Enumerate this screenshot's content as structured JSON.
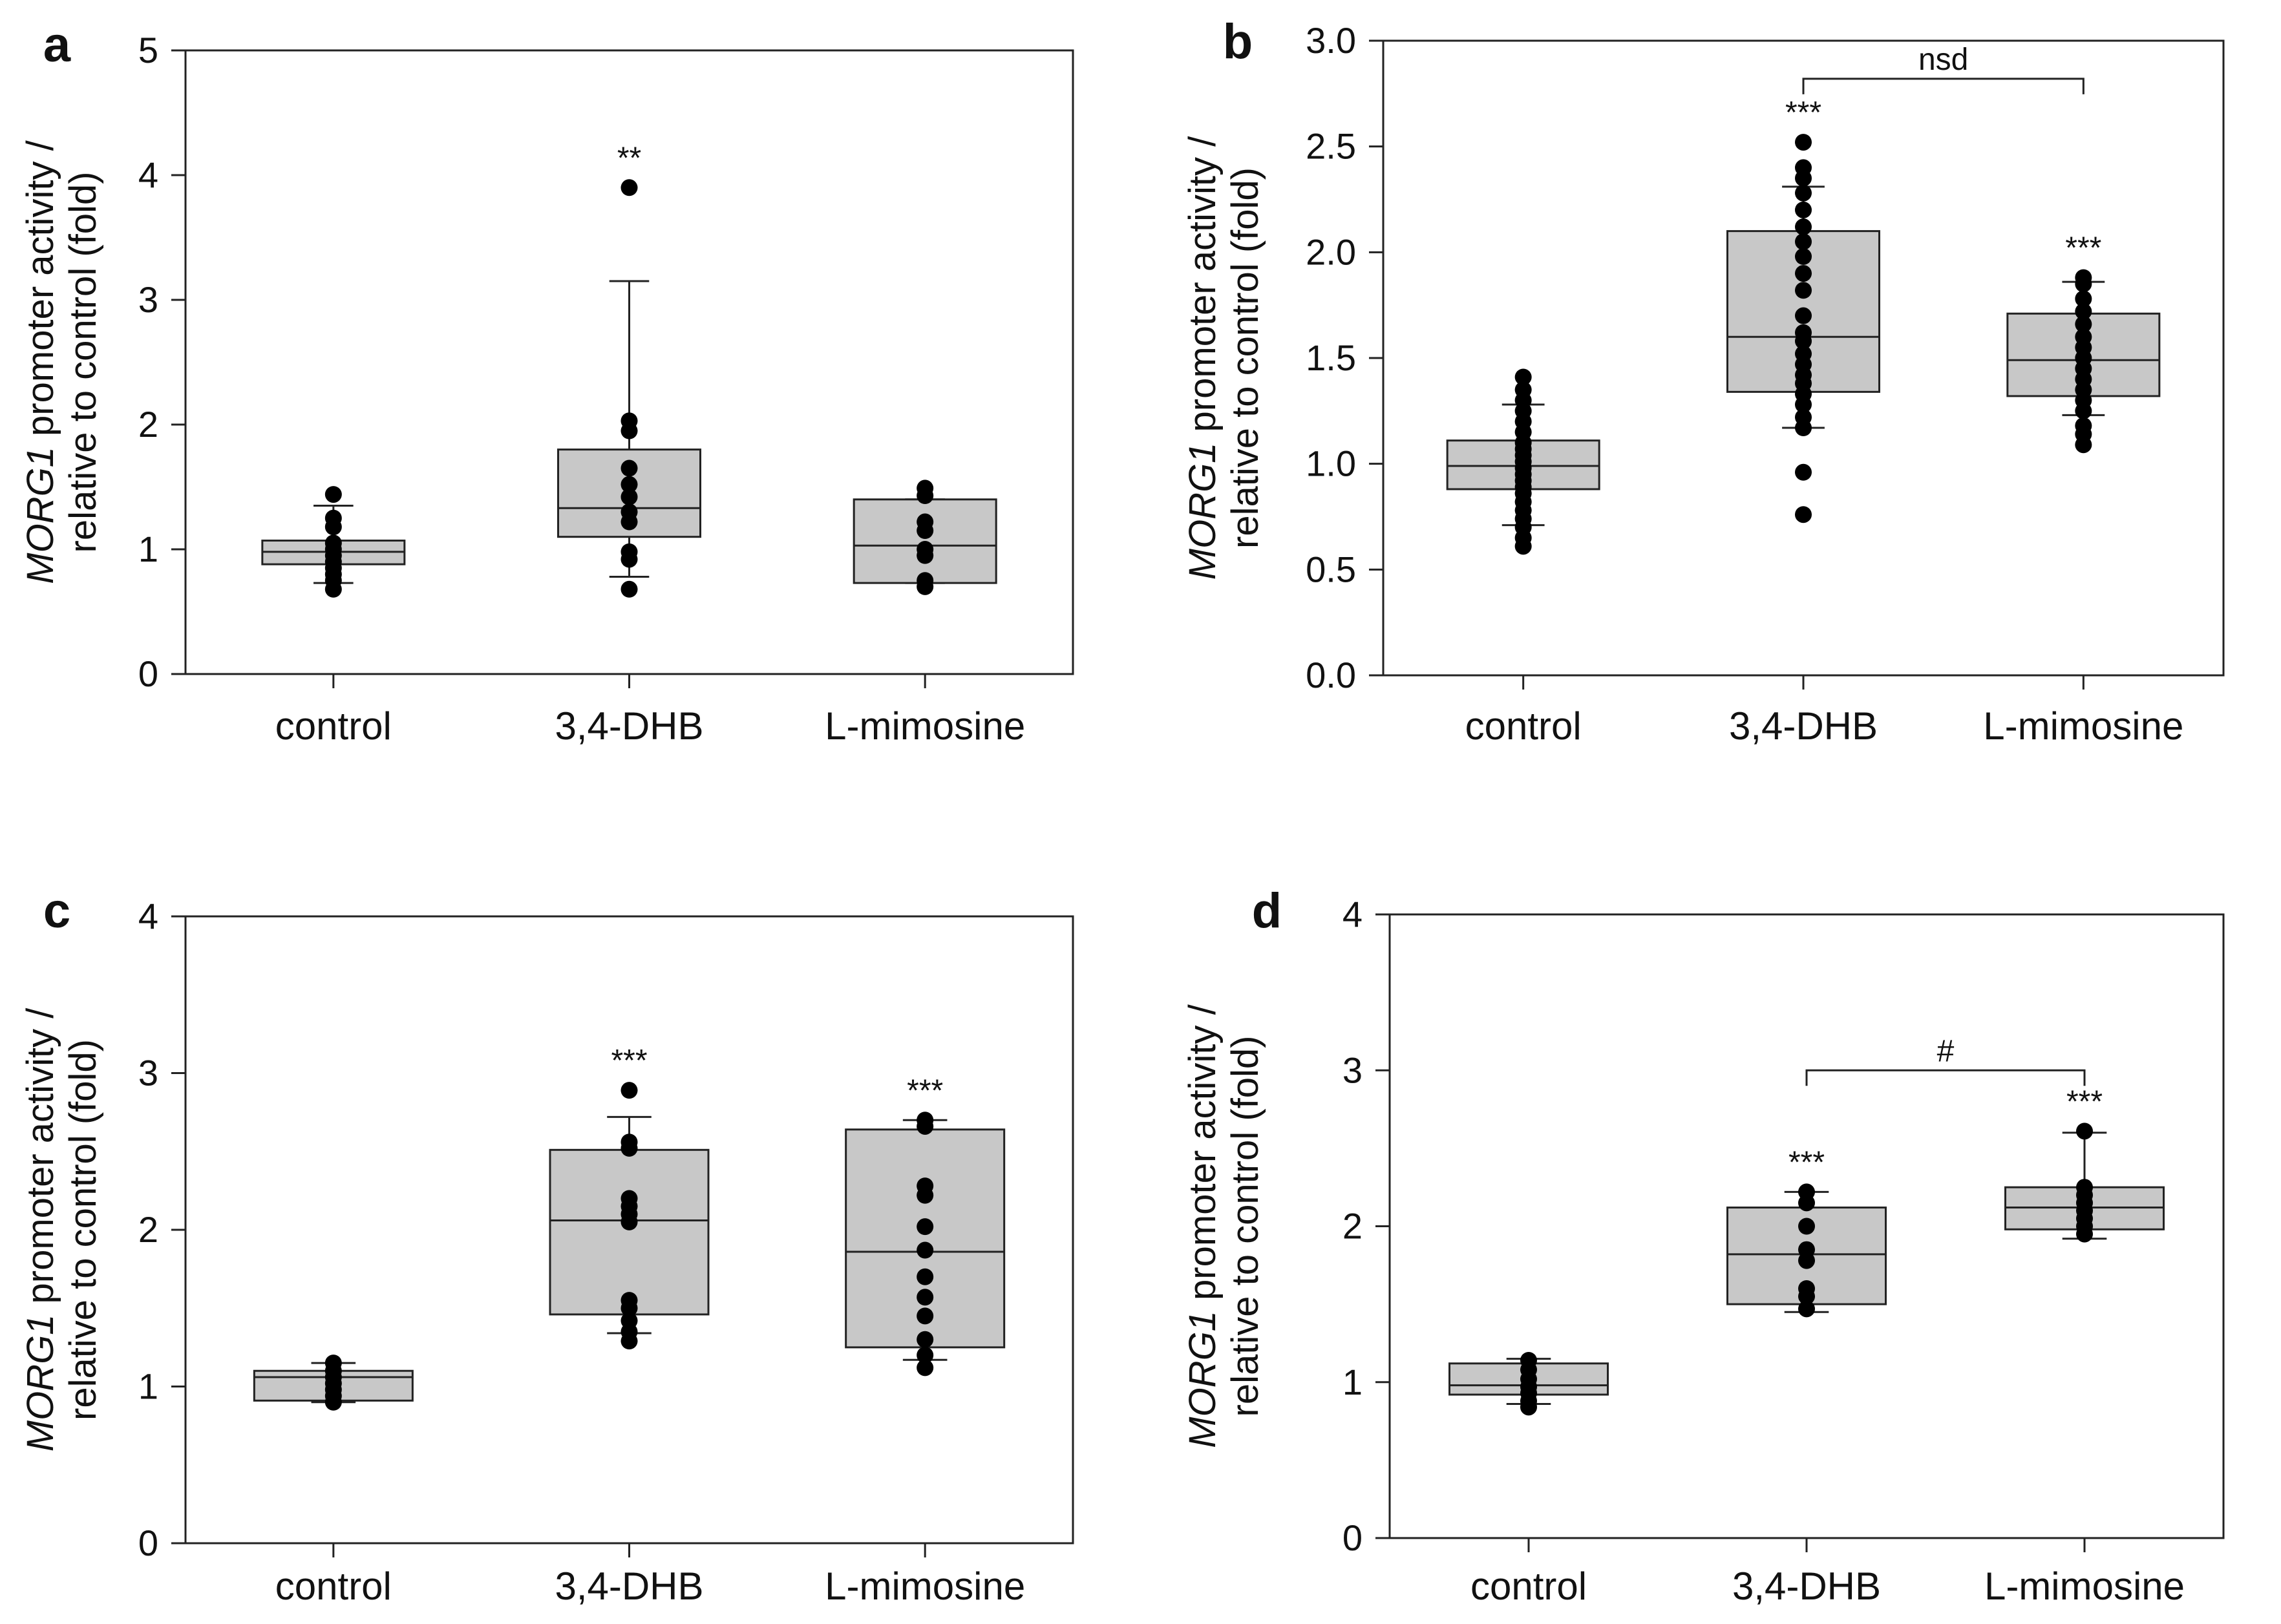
{
  "y_axis_label_italic": "MORG1",
  "y_axis_label_rest": " promoter activity /",
  "y_axis_label_line2": "relative to control (fold)",
  "chart_data": [
    {
      "panel": "a",
      "type": "box",
      "categories": [
        "control",
        "3,4-DHB",
        "L-mimosine"
      ],
      "ylim": [
        0,
        5
      ],
      "yticks": [
        "0",
        "1",
        "2",
        "3",
        "4",
        "5"
      ],
      "ytick_values": [
        0,
        1,
        2,
        3,
        4,
        5
      ],
      "boxes": [
        {
          "q1": 0.88,
          "median": 0.98,
          "q3": 1.07,
          "whisker_low": 0.73,
          "whisker_high": 1.35,
          "points": [
            1.44,
            1.25,
            1.18,
            1.05,
            1.0,
            0.95,
            0.9,
            0.85,
            0.8,
            0.75,
            0.68
          ],
          "annotation": ""
        },
        {
          "q1": 1.1,
          "median": 1.33,
          "q3": 1.8,
          "whisker_low": 0.78,
          "whisker_high": 3.15,
          "points": [
            3.9,
            2.03,
            1.95,
            1.65,
            1.52,
            1.42,
            1.3,
            1.22,
            0.98,
            0.92,
            0.68
          ],
          "annotation": "**"
        },
        {
          "q1": 0.73,
          "median": 1.03,
          "q3": 1.4,
          "whisker_low": 0.73,
          "whisker_high": 1.4,
          "points": [
            1.49,
            1.43,
            1.22,
            1.15,
            1.0,
            0.95,
            0.75,
            0.7
          ],
          "annotation": ""
        }
      ],
      "bracket": null
    },
    {
      "panel": "b",
      "type": "box",
      "categories": [
        "control",
        "3,4-DHB",
        "L-mimosine"
      ],
      "ylim": [
        0,
        3.0
      ],
      "yticks": [
        "0.0",
        "0.5",
        "1.0",
        "1.5",
        "2.0",
        "2.5",
        "3.0"
      ],
      "ytick_values": [
        0,
        0.5,
        1.0,
        1.5,
        2.0,
        2.5,
        3.0
      ],
      "boxes": [
        {
          "q1": 0.88,
          "median": 0.99,
          "q3": 1.11,
          "whisker_low": 0.71,
          "whisker_high": 1.28,
          "points": [
            1.41,
            1.35,
            1.3,
            1.25,
            1.2,
            1.15,
            1.1,
            1.07,
            1.04,
            1.01,
            0.98,
            0.95,
            0.92,
            0.89,
            0.86,
            0.82,
            0.78,
            0.74,
            0.7,
            0.65,
            0.61
          ],
          "annotation": ""
        },
        {
          "q1": 1.34,
          "median": 1.6,
          "q3": 2.1,
          "whisker_low": 1.17,
          "whisker_high": 2.31,
          "points": [
            2.52,
            2.4,
            2.35,
            2.28,
            2.2,
            2.12,
            2.05,
            1.98,
            1.9,
            1.82,
            1.7,
            1.62,
            1.58,
            1.52,
            1.47,
            1.42,
            1.38,
            1.33,
            1.28,
            1.22,
            1.17,
            0.96,
            0.76
          ],
          "annotation": "***"
        },
        {
          "q1": 1.32,
          "median": 1.49,
          "q3": 1.71,
          "whisker_low": 1.23,
          "whisker_high": 1.86,
          "points": [
            1.88,
            1.85,
            1.78,
            1.72,
            1.66,
            1.6,
            1.55,
            1.5,
            1.45,
            1.4,
            1.35,
            1.3,
            1.25,
            1.18,
            1.14,
            1.09
          ],
          "annotation": "***"
        }
      ],
      "bracket": {
        "from": 1,
        "to": 2,
        "value": 2.82,
        "label": "nsd"
      }
    },
    {
      "panel": "c",
      "type": "box",
      "categories": [
        "control",
        "3,4-DHB",
        "L-mimosine"
      ],
      "ylim": [
        0,
        4
      ],
      "yticks": [
        "0",
        "1",
        "2",
        "3",
        "4"
      ],
      "ytick_values": [
        0,
        1,
        2,
        3,
        4
      ],
      "boxes": [
        {
          "q1": 0.91,
          "median": 1.06,
          "q3": 1.1,
          "whisker_low": 0.9,
          "whisker_high": 1.15,
          "points": [
            1.15,
            1.1,
            1.06,
            1.02,
            0.98,
            0.94,
            0.9
          ],
          "annotation": ""
        },
        {
          "q1": 1.46,
          "median": 2.06,
          "q3": 2.51,
          "whisker_low": 1.34,
          "whisker_high": 2.72,
          "points": [
            2.89,
            2.56,
            2.52,
            2.2,
            2.15,
            2.1,
            2.05,
            1.55,
            1.5,
            1.42,
            1.35,
            1.29
          ],
          "annotation": "***"
        },
        {
          "q1": 1.25,
          "median": 1.86,
          "q3": 2.64,
          "whisker_low": 1.17,
          "whisker_high": 2.7,
          "points": [
            2.7,
            2.66,
            2.28,
            2.22,
            2.02,
            1.87,
            1.7,
            1.57,
            1.45,
            1.3,
            1.2,
            1.12
          ],
          "annotation": "***"
        }
      ],
      "bracket": null
    },
    {
      "panel": "d",
      "type": "box",
      "categories": [
        "control",
        "3,4-DHB",
        "L-mimosine"
      ],
      "ylim": [
        0,
        4
      ],
      "yticks": [
        "0",
        "1",
        "2",
        "3",
        "4"
      ],
      "ytick_values": [
        0,
        1,
        2,
        3,
        4
      ],
      "boxes": [
        {
          "q1": 0.92,
          "median": 0.98,
          "q3": 1.12,
          "whisker_low": 0.86,
          "whisker_high": 1.15,
          "points": [
            1.14,
            1.08,
            1.02,
            0.97,
            0.93,
            0.88,
            0.84
          ],
          "annotation": ""
        },
        {
          "q1": 1.5,
          "median": 1.82,
          "q3": 2.12,
          "whisker_low": 1.45,
          "whisker_high": 2.22,
          "points": [
            2.22,
            2.15,
            2.0,
            1.85,
            1.78,
            1.6,
            1.55,
            1.47
          ],
          "annotation": "***"
        },
        {
          "q1": 1.98,
          "median": 2.12,
          "q3": 2.25,
          "whisker_low": 1.92,
          "whisker_high": 2.6,
          "points": [
            2.61,
            2.25,
            2.2,
            2.15,
            2.1,
            2.05,
            2.0,
            1.95
          ],
          "annotation": "***"
        }
      ],
      "bracket": {
        "from": 1,
        "to": 2,
        "value": 3.0,
        "label": "#"
      }
    }
  ]
}
